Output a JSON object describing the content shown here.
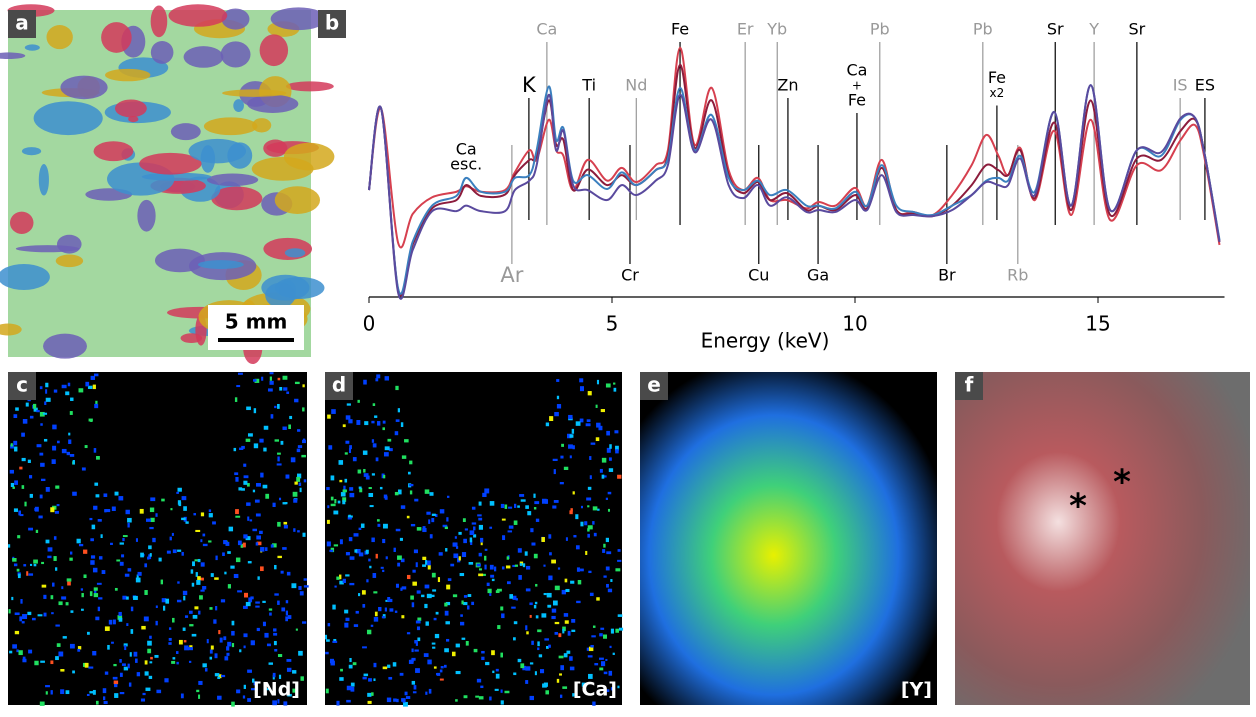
{
  "panel_labels": [
    "a",
    "b",
    "c",
    "d",
    "e",
    "f"
  ],
  "scale_bar": "5 mm",
  "map_labels": [
    "[Nd]",
    "[Ca]",
    "[Y]"
  ],
  "markers": [
    "*",
    "*"
  ],
  "chart_data": {
    "type": "line",
    "xlabel": "Energy (keV)",
    "xlim": [
      0,
      17.5
    ],
    "xticks": [
      0,
      5,
      10,
      15
    ],
    "ylim": [
      0,
      100
    ],
    "x": [
      0,
      0.25,
      0.6,
      0.9,
      1.3,
      1.8,
      2.0,
      2.3,
      2.8,
      3.0,
      3.3,
      3.45,
      3.7,
      3.85,
      4.0,
      4.2,
      4.5,
      4.9,
      5.2,
      5.5,
      5.9,
      6.15,
      6.4,
      6.7,
      7.05,
      7.4,
      7.7,
      8.0,
      8.25,
      8.6,
      9.0,
      9.25,
      9.6,
      10.0,
      10.25,
      10.55,
      10.85,
      11.2,
      11.6,
      12.0,
      12.4,
      12.7,
      12.95,
      13.15,
      13.4,
      13.7,
      14.1,
      14.45,
      14.85,
      15.25,
      15.8,
      16.3,
      16.7,
      17.0,
      17.2,
      17.5
    ],
    "series": [
      {
        "color": "#d6404f",
        "values": [
          38.6,
          68,
          19.5,
          30,
          36,
          38,
          40,
          38,
          38.6,
          45,
          53,
          49.5,
          64,
          53,
          51,
          38.6,
          49.5,
          42,
          46.6,
          41.5,
          47.6,
          53,
          90,
          54.9,
          75.5,
          45.8,
          38.6,
          43,
          35,
          35,
          32,
          34.3,
          33,
          39.4,
          33,
          49.5,
          31.4,
          30.7,
          29.6,
          36.8,
          47.6,
          58.5,
          51,
          44,
          53.8,
          35,
          60,
          29.6,
          64,
          27.8,
          47.6,
          45.8,
          56.7,
          62,
          49.5,
          18.8
        ]
      },
      {
        "color": "#8c1c3c",
        "values": [
          38.6,
          68,
          2.5,
          19,
          32,
          35,
          40.4,
          36.5,
          37,
          44,
          49.5,
          51,
          71,
          55,
          56.7,
          38.6,
          46,
          40.4,
          44,
          40.4,
          45.8,
          51,
          83.8,
          53.8,
          71,
          44,
          37.5,
          41.5,
          35,
          37.5,
          31.4,
          32.9,
          31.4,
          36.8,
          32,
          46.6,
          31.4,
          30,
          29.2,
          33,
          40.4,
          47.6,
          45.8,
          44,
          53,
          35.7,
          63,
          31.4,
          71,
          29.6,
          50,
          49.5,
          60,
          64,
          51,
          19.9
        ]
      },
      {
        "color": "#3b80bf",
        "values": [
          38.6,
          68,
          3,
          20,
          33,
          36.5,
          43,
          38,
          38,
          43,
          44,
          53,
          76,
          56.7,
          61,
          42,
          44,
          39,
          45,
          40.4,
          45.8,
          50,
          75.5,
          53,
          65.7,
          43,
          38.6,
          42,
          36.8,
          38.6,
          33,
          33,
          32,
          38,
          33,
          47.6,
          33,
          30.7,
          29.6,
          33,
          36.8,
          42,
          43,
          42,
          51,
          38,
          66.8,
          33,
          76.5,
          31.4,
          53,
          51,
          64,
          64.6,
          51,
          20.6
        ]
      },
      {
        "color": "#5a4a9e",
        "values": [
          38.6,
          68,
          1.5,
          17,
          31,
          31,
          33,
          31,
          31,
          38.6,
          42,
          47.6,
          73,
          53,
          60,
          40.4,
          38.6,
          35,
          40.4,
          36.8,
          42,
          47.6,
          73,
          52.3,
          64,
          40.4,
          35.7,
          40.4,
          33,
          36,
          30.7,
          31.4,
          30.7,
          35,
          31.4,
          44,
          30.7,
          29.6,
          29.2,
          31.4,
          36.8,
          41.5,
          40.4,
          40.4,
          50,
          36.8,
          66.8,
          33,
          76.5,
          31.4,
          53,
          52.3,
          64.6,
          64.6,
          51,
          19.9
        ]
      }
    ],
    "annotations": [
      {
        "text": [
          "Ca",
          "esc."
        ],
        "x": 2.0,
        "color": "#000000",
        "position": "peak"
      },
      {
        "text": [
          "Ar"
        ],
        "x": 2.94,
        "color": "#999999",
        "position": "bottom"
      },
      {
        "text": [
          "K"
        ],
        "x": 3.29,
        "color": "#000000",
        "position": "middle"
      },
      {
        "text": [
          "Ca"
        ],
        "x": 3.66,
        "color": "#999999",
        "position": "top"
      },
      {
        "text": [
          "Ti"
        ],
        "x": 4.53,
        "color": "#000000",
        "position": "middle"
      },
      {
        "text": [
          "Nd"
        ],
        "x": 5.5,
        "color": "#999999",
        "position": "middle"
      },
      {
        "text": [
          "Cr"
        ],
        "x": 5.37,
        "color": "#000000",
        "position": "bottom"
      },
      {
        "text": [
          "Fe"
        ],
        "x": 6.4,
        "color": "#000000",
        "position": "top"
      },
      {
        "text": [
          "Er"
        ],
        "x": 7.74,
        "color": "#999999",
        "position": "top"
      },
      {
        "text": [
          "Yb"
        ],
        "x": 8.4,
        "color": "#999999",
        "position": "top"
      },
      {
        "text": [
          "Zn"
        ],
        "x": 8.62,
        "color": "#000000",
        "position": "middle"
      },
      {
        "text": [
          "Cu"
        ],
        "x": 8.02,
        "color": "#000000",
        "position": "bottom"
      },
      {
        "text": [
          "Ga"
        ],
        "x": 9.24,
        "color": "#000000",
        "position": "bottom"
      },
      {
        "text": [
          "Ca",
          "+",
          "Fe"
        ],
        "x": 10.04,
        "color": "#000000",
        "position": "middle"
      },
      {
        "text": [
          "Pb"
        ],
        "x": 10.51,
        "color": "#999999",
        "position": "top"
      },
      {
        "text": [
          "Br"
        ],
        "x": 11.89,
        "color": "#000000",
        "position": "bottom"
      },
      {
        "text": [
          "Pb"
        ],
        "x": 12.63,
        "color": "#999999",
        "position": "top"
      },
      {
        "text": [
          "Fe",
          "x2"
        ],
        "x": 12.92,
        "color": "#000000",
        "position": "middle"
      },
      {
        "text": [
          "Rb"
        ],
        "x": 13.35,
        "color": "#999999",
        "position": "bottom"
      },
      {
        "text": [
          "Sr"
        ],
        "x": 14.12,
        "color": "#000000",
        "position": "top"
      },
      {
        "text": [
          "Y"
        ],
        "x": 14.92,
        "color": "#999999",
        "position": "top"
      },
      {
        "text": [
          "Sr"
        ],
        "x": 15.8,
        "color": "#000000",
        "position": "top"
      },
      {
        "text": [
          "IS"
        ],
        "x": 16.69,
        "color": "#999999",
        "position": "middle"
      },
      {
        "text": [
          "ES"
        ],
        "x": 17.2,
        "color": "#000000",
        "position": "middle"
      }
    ]
  }
}
